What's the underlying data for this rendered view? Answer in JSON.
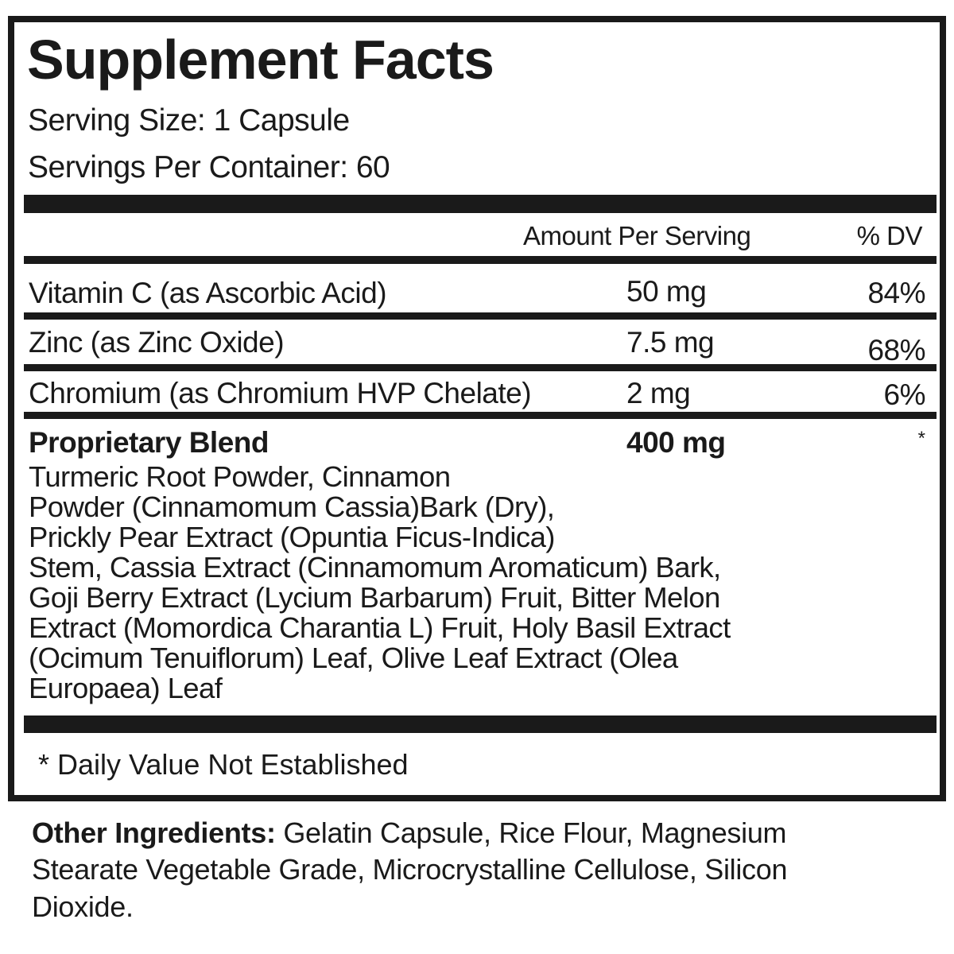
{
  "title": "Supplement Facts",
  "serving_size": "Serving Size: 1 Capsule",
  "servings_per_container": "Servings Per Container: 60",
  "header": {
    "amount": "Amount Per Serving",
    "dv": "% DV"
  },
  "nutrients": [
    {
      "name": "Vitamin C (as Ascorbic Acid)",
      "amount": "50 mg",
      "dv": "84%"
    },
    {
      "name": "Zinc (as Zinc Oxide)",
      "amount": "7.5 mg",
      "dv": "68%"
    },
    {
      "name": "Chromium (as Chromium HVP Chelate)",
      "amount": "2 mg",
      "dv": "6%"
    }
  ],
  "blend": {
    "name": "Proprietary Blend",
    "amount": "400 mg",
    "dv": "*",
    "ingredients_lines": [
      "Turmeric Root Powder, Cinnamon",
      "Powder (Cinnamomum Cassia)Bark (Dry),",
      "Prickly Pear Extract (Opuntia Ficus-Indica)",
      "Stem, Cassia Extract (Cinnamomum Aromaticum) Bark,",
      "Goji Berry Extract (Lycium Barbarum) Fruit, Bitter Melon",
      "Extract (Momordica Charantia L) Fruit, Holy Basil Extract",
      "(Ocimum Tenuiflorum) Leaf, Olive Leaf Extract (Olea",
      "Europaea) Leaf"
    ]
  },
  "footnote": "* Daily Value Not Established",
  "other_ingredients": {
    "label": "Other Ingredients:",
    "lines": [
      " Gelatin Capsule,  Rice Flour, Magnesium",
      "Stearate Vegetable Grade, Microcrystalline Cellulose, Silicon",
      "Dioxide."
    ]
  }
}
